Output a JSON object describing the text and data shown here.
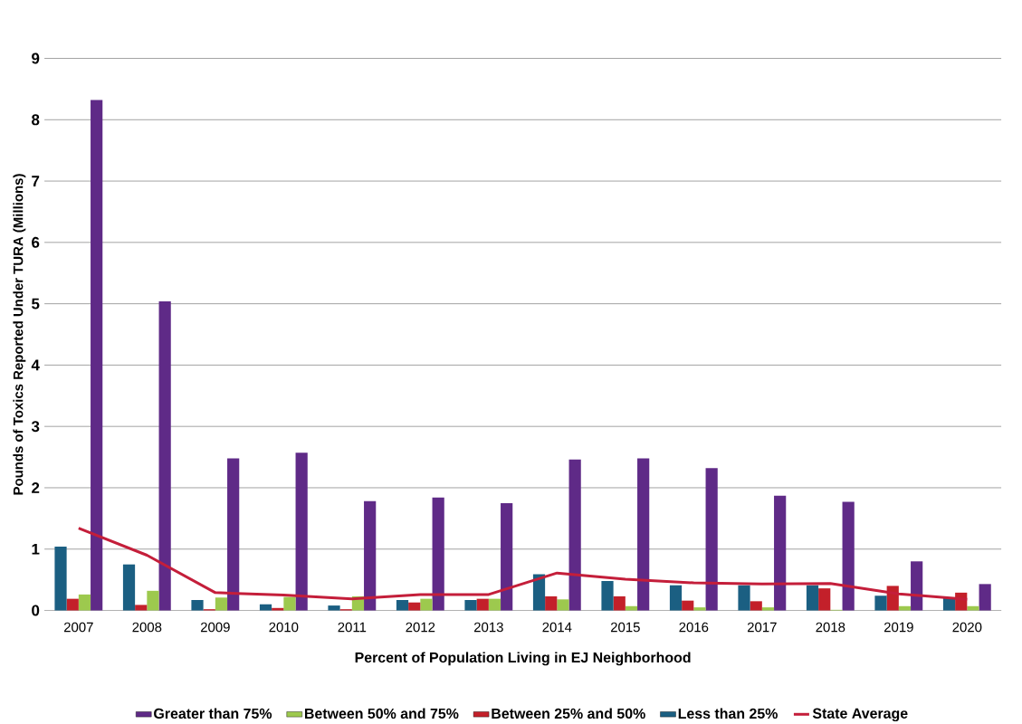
{
  "chart_data": {
    "type": "bar",
    "xlabel": "Percent of Population Living in EJ Neighborhood",
    "ylabel": "Pounds of Toxics Reported Under TURA (Millions)",
    "categories": [
      "2007",
      "2008",
      "2009",
      "2010",
      "2011",
      "2012",
      "2013",
      "2014",
      "2015",
      "2016",
      "2017",
      "2018",
      "2019",
      "2020"
    ],
    "series": [
      {
        "name": "Greater than 75%",
        "color": "#5f2a87",
        "values": [
          8.32,
          5.04,
          2.48,
          2.57,
          1.78,
          1.84,
          1.75,
          2.46,
          2.48,
          2.32,
          1.87,
          1.77,
          0.8,
          0.43
        ]
      },
      {
        "name": "Between 50% and 75%",
        "color": "#9dc94e",
        "values": [
          0.26,
          0.32,
          0.21,
          0.22,
          0.23,
          0.19,
          0.19,
          0.18,
          0.07,
          0.05,
          0.05,
          0.01,
          0.07,
          0.07
        ]
      },
      {
        "name": "Between 25% and 50%",
        "color": "#c3202a",
        "values": [
          0.19,
          0.09,
          0.02,
          0.04,
          0.02,
          0.13,
          0.19,
          0.23,
          0.23,
          0.16,
          0.15,
          0.36,
          0.4,
          0.29
        ]
      },
      {
        "name": "Less than 25%",
        "color": "#1b5f82",
        "values": [
          1.04,
          0.75,
          0.17,
          0.1,
          0.08,
          0.17,
          0.17,
          0.59,
          0.48,
          0.41,
          0.41,
          0.41,
          0.24,
          0.2
        ]
      },
      {
        "name": "State Average",
        "type": "line",
        "color": "#c41e3a",
        "marker": "none",
        "line_style": "solid",
        "values": [
          1.34,
          0.9,
          0.29,
          0.25,
          0.19,
          0.26,
          0.26,
          0.61,
          0.51,
          0.45,
          0.43,
          0.44,
          0.27,
          0.18
        ]
      }
    ],
    "ylim": [
      0,
      9
    ],
    "yticks": [
      0,
      1,
      2,
      3,
      4,
      5,
      6,
      7,
      8,
      9
    ],
    "grid": "y",
    "legend": "bottom"
  }
}
